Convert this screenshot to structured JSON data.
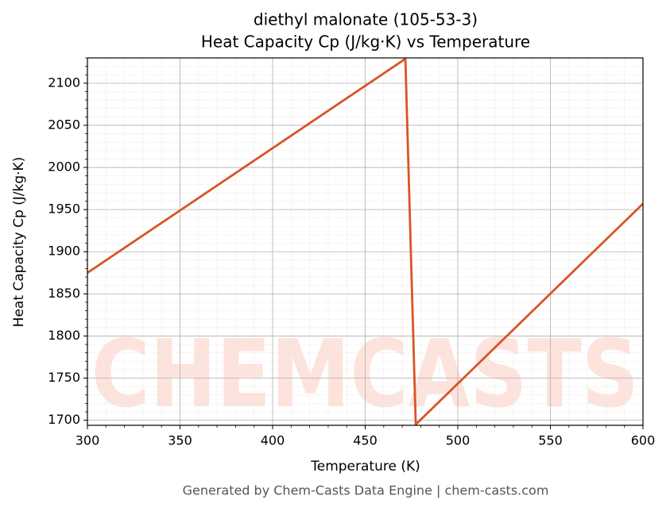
{
  "chart_data": {
    "type": "line",
    "title": "diethyl malonate (105-53-3)",
    "subtitle": "Heat Capacity Cp (J/kg·K) vs Temperature",
    "x_label": "Temperature (K)",
    "y_label": "Heat Capacity Cp (J/kg·K)",
    "footer": "Generated by Chem-Casts Data Engine | chem-casts.com",
    "watermark": "CHEMCASTS",
    "x": [
      300,
      471.7,
      477.3,
      600
    ],
    "series": [
      {
        "name": "Cp",
        "color": "#d95425",
        "values": [
          1875,
          2129,
          1695,
          1957
        ]
      }
    ],
    "xlim": [
      300,
      600
    ],
    "xticks": [
      300,
      350,
      400,
      450,
      500,
      550,
      600
    ],
    "ylim": [
      1694,
      2130
    ],
    "yticks": [
      1700,
      1750,
      1800,
      1850,
      1900,
      1950,
      2000,
      2050,
      2100
    ],
    "grid": true,
    "minor_grid": true
  }
}
